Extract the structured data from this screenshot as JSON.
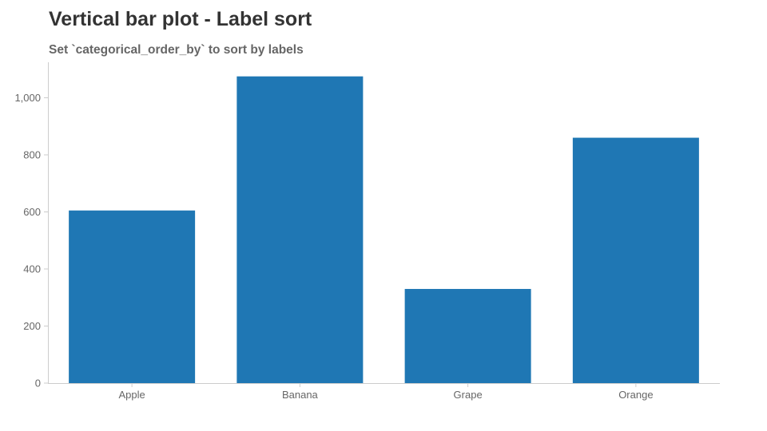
{
  "title": "Vertical bar plot - Label sort",
  "subtitle": "Set `categorical_order_by` to sort by labels",
  "colors": {
    "bar": "#1f77b4",
    "axis": "#cccccc",
    "tick_text": "#666666",
    "title_text": "#333333",
    "subtitle_text": "#666666"
  },
  "chart_data": {
    "type": "bar",
    "title": "Vertical bar plot - Label sort",
    "subtitle": "Set `categorical_order_by` to sort by labels",
    "xlabel": "",
    "ylabel": "",
    "categories": [
      "Apple",
      "Banana",
      "Grape",
      "Orange"
    ],
    "values": [
      605,
      1075,
      330,
      860
    ],
    "ylim": [
      0,
      1120
    ],
    "yticks": [
      0,
      200,
      400,
      600,
      800,
      1000
    ],
    "ytick_labels": [
      "0",
      "200",
      "400",
      "600",
      "800",
      "1,000"
    ],
    "grid": false,
    "legend": "none"
  }
}
